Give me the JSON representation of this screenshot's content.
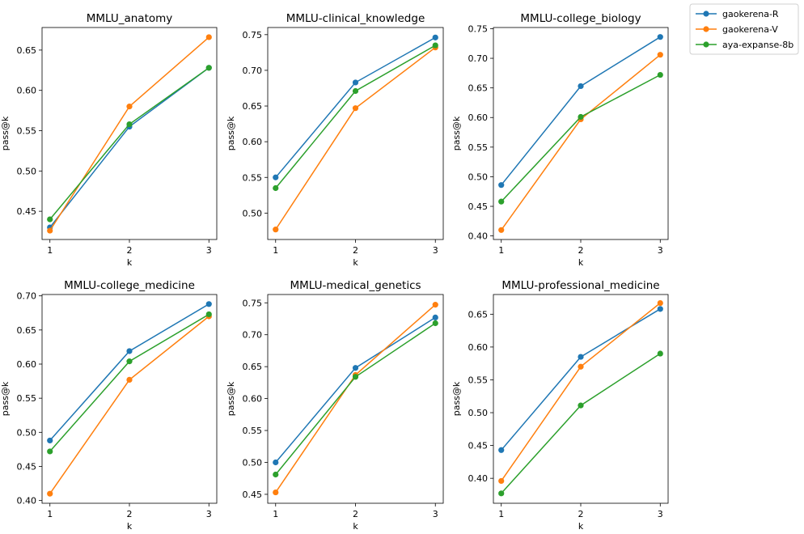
{
  "legend": {
    "entries": [
      {
        "name": "gaokerena-R",
        "color": "#1f77b4"
      },
      {
        "name": "gaokerena-V",
        "color": "#ff7f0e"
      },
      {
        "name": "aya-expanse-8b",
        "color": "#2ca02c"
      }
    ]
  },
  "chart_data": [
    {
      "type": "line",
      "title": "MMLU_anatomy",
      "xlabel": "k",
      "ylabel": "pass@k",
      "x": [
        1,
        2,
        3
      ],
      "ylim": [
        0.415,
        0.678
      ],
      "yticks": [
        "0.45",
        "0.50",
        "0.55",
        "0.60",
        "0.65"
      ],
      "series": [
        {
          "name": "gaokerena-R",
          "values": [
            0.43,
            0.555,
            0.628
          ]
        },
        {
          "name": "gaokerena-V",
          "values": [
            0.426,
            0.58,
            0.666
          ]
        },
        {
          "name": "aya-expanse-8b",
          "values": [
            0.44,
            0.558,
            0.628
          ]
        }
      ]
    },
    {
      "type": "line",
      "title": "MMLU-clinical_knowledge",
      "xlabel": "k",
      "ylabel": "pass@k",
      "x": [
        1,
        2,
        3
      ],
      "ylim": [
        0.463,
        0.76
      ],
      "yticks": [
        "0.50",
        "0.55",
        "0.60",
        "0.65",
        "0.70",
        "0.75"
      ],
      "series": [
        {
          "name": "gaokerena-R",
          "values": [
            0.55,
            0.683,
            0.746
          ]
        },
        {
          "name": "gaokerena-V",
          "values": [
            0.477,
            0.647,
            0.732
          ]
        },
        {
          "name": "aya-expanse-8b",
          "values": [
            0.535,
            0.671,
            0.735
          ]
        }
      ]
    },
    {
      "type": "line",
      "title": "MMLU-college_biology",
      "xlabel": "k",
      "ylabel": "pass@k",
      "x": [
        1,
        2,
        3
      ],
      "ylim": [
        0.394,
        0.752
      ],
      "yticks": [
        "0.40",
        "0.45",
        "0.50",
        "0.55",
        "0.60",
        "0.65",
        "0.70",
        "0.75"
      ],
      "series": [
        {
          "name": "gaokerena-R",
          "values": [
            0.486,
            0.653,
            0.736
          ]
        },
        {
          "name": "gaokerena-V",
          "values": [
            0.41,
            0.597,
            0.706
          ]
        },
        {
          "name": "aya-expanse-8b",
          "values": [
            0.458,
            0.601,
            0.672
          ]
        }
      ]
    },
    {
      "type": "line",
      "title": "MMLU-college_medicine",
      "xlabel": "k",
      "ylabel": "pass@k",
      "x": [
        1,
        2,
        3
      ],
      "ylim": [
        0.396,
        0.702
      ],
      "yticks": [
        "0.40",
        "0.45",
        "0.50",
        "0.55",
        "0.60",
        "0.65",
        "0.70"
      ],
      "series": [
        {
          "name": "gaokerena-R",
          "values": [
            0.488,
            0.619,
            0.688
          ]
        },
        {
          "name": "gaokerena-V",
          "values": [
            0.41,
            0.577,
            0.67
          ]
        },
        {
          "name": "aya-expanse-8b",
          "values": [
            0.472,
            0.604,
            0.673
          ]
        }
      ]
    },
    {
      "type": "line",
      "title": "MMLU-medical_genetics",
      "xlabel": "k",
      "ylabel": "pass@k",
      "x": [
        1,
        2,
        3
      ],
      "ylim": [
        0.436,
        0.763
      ],
      "yticks": [
        "0.45",
        "0.50",
        "0.55",
        "0.60",
        "0.65",
        "0.70",
        "0.75"
      ],
      "series": [
        {
          "name": "gaokerena-R",
          "values": [
            0.5,
            0.648,
            0.727
          ]
        },
        {
          "name": "gaokerena-V",
          "values": [
            0.453,
            0.637,
            0.747
          ]
        },
        {
          "name": "aya-expanse-8b",
          "values": [
            0.481,
            0.634,
            0.718
          ]
        }
      ]
    },
    {
      "type": "line",
      "title": "MMLU-professional_medicine",
      "xlabel": "k",
      "ylabel": "pass@k",
      "x": [
        1,
        2,
        3
      ],
      "ylim": [
        0.362,
        0.68
      ],
      "yticks": [
        "0.40",
        "0.45",
        "0.50",
        "0.55",
        "0.60",
        "0.65"
      ],
      "series": [
        {
          "name": "gaokerena-R",
          "values": [
            0.443,
            0.585,
            0.658
          ]
        },
        {
          "name": "gaokerena-V",
          "values": [
            0.396,
            0.57,
            0.667
          ]
        },
        {
          "name": "aya-expanse-8b",
          "values": [
            0.377,
            0.511,
            0.59
          ]
        }
      ]
    }
  ]
}
